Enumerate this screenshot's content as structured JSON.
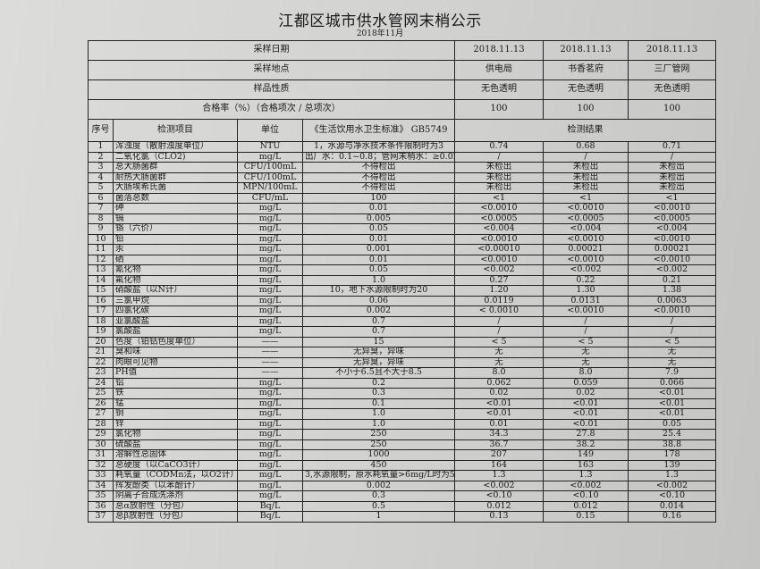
{
  "title": "江都区城市供水管网末梢公示",
  "subtitle": "2018年11月",
  "header_rows": [
    {
      "label": "采样日期",
      "values": [
        "2018.11.13",
        "2018.11.13",
        "2018.11.13"
      ]
    },
    {
      "label": "采样地点",
      "values": [
        "供电局",
        "书香茗府",
        "三厂管网"
      ]
    },
    {
      "label": "样品性质",
      "values": [
        "无色透明",
        "无色透明",
        "无色透明"
      ]
    },
    {
      "label": "合格率（%）（合格项次 / 总项次）",
      "values": [
        "100",
        "100",
        "100"
      ]
    }
  ],
  "columns": {
    "seq": "序号",
    "item": "检测项目",
    "unit": "单位",
    "standard": "《生活饮用水卫生标准》 GB5749",
    "results": "检测结果"
  },
  "rows": [
    [
      "1",
      "浑浊度（散射浊度单位）",
      "NTU",
      "1，水源与净水技术条件限制时为3",
      "0.74",
      "0.68",
      "0.71"
    ],
    [
      "2",
      "二氧化氯（CLO2)",
      "mg/L",
      "出厂水：0.1~0.8；管网末梢水：≥0.02",
      "/",
      "/",
      "/"
    ],
    [
      "3",
      "总大肠菌群",
      "CFU/100mL",
      "不得检出",
      "未检出",
      "未检出",
      "未检出"
    ],
    [
      "4",
      "耐热大肠菌群",
      "CFU/100mL",
      "不得检出",
      "未检出",
      "未检出",
      "未检出"
    ],
    [
      "5",
      "大肠埃希氏菌",
      "MPN/100mL",
      "不得检出",
      "未检出",
      "未检出",
      "未检出"
    ],
    [
      "6",
      "菌落总数",
      "CFU/mL",
      "100",
      "<1",
      "<1",
      "<1"
    ],
    [
      "7",
      "砷",
      "mg/L",
      "0.01",
      "<0.0010",
      "<0.0010",
      "<0.0010"
    ],
    [
      "8",
      "镉",
      "mg/L",
      "0.005",
      "<0.0005",
      "<0.0005",
      "<0.0005"
    ],
    [
      "9",
      "铬（六价）",
      "mg/L",
      "0.05",
      "<0.004",
      "<0.004",
      "<0.004"
    ],
    [
      "10",
      "铅",
      "mg/L",
      "0.01",
      "<0.0010",
      "<0.0010",
      "<0.0010"
    ],
    [
      "11",
      "汞",
      "mg/L",
      "0.001",
      "<0.00010",
      "0.00021",
      "0.00021"
    ],
    [
      "12",
      "硒",
      "mg/L",
      "0.01",
      "<0.0010",
      "<0.0010",
      "<0.0010"
    ],
    [
      "13",
      "氰化物",
      "mg/L",
      "0.05",
      "<0.002",
      "<0.002",
      "<0.002"
    ],
    [
      "14",
      "氟化物",
      "mg/L",
      "1.0",
      "0.27",
      "0.22",
      "0.21"
    ],
    [
      "15",
      "硝酸盐（以N计）",
      "mg/L",
      "10，地下水源限制时为20",
      "1.20",
      "1.30",
      "1.38"
    ],
    [
      "16",
      "三氯甲烷",
      "mg/L",
      "0.06",
      "0.0119",
      "0.0131",
      "0.0063"
    ],
    [
      "17",
      "四氯化碳",
      "mg/L",
      "0.002",
      "< 0.0010",
      "<0.0010",
      "<0.0010"
    ],
    [
      "18",
      "亚氯酸盐",
      "mg/L",
      "0.7",
      "/",
      "/",
      "/"
    ],
    [
      "19",
      "氯酸盐",
      "mg/L",
      "0.7",
      "/",
      "/",
      "/"
    ],
    [
      "20",
      "色度（铂钴色度单位）",
      "——",
      "15",
      "< 5",
      "< 5",
      "< 5"
    ],
    [
      "21",
      "臭和味",
      "——",
      "无异臭，异味",
      "无",
      "无",
      "无"
    ],
    [
      "22",
      "肉眼可见物",
      "——",
      "无异臭，异味",
      "无",
      "无",
      "无"
    ],
    [
      "23",
      "PH值",
      "——",
      "不小于6.5且不大于8.5",
      "8.0",
      "8.0",
      "7.9"
    ],
    [
      "24",
      "铝",
      "mg/L",
      "0.2",
      "0.062",
      "0.059",
      "0.066"
    ],
    [
      "25",
      "铁",
      "mg/L",
      "0.3",
      "0.02",
      "0.02",
      "<0.01"
    ],
    [
      "26",
      "锰",
      "mg/L",
      "0.1",
      "<0.01",
      "<0.01",
      "<0.01"
    ],
    [
      "27",
      "铜",
      "mg/L",
      "1.0",
      "<0.01",
      "<0.01",
      "<0.01"
    ],
    [
      "28",
      "锌",
      "mg/L",
      "1.0",
      "0.01",
      "<0.01",
      "0.05"
    ],
    [
      "29",
      "氯化物",
      "mg/L",
      "250",
      "34.3",
      "27.8",
      "25.4"
    ],
    [
      "30",
      "硫酸盐",
      "mg/L",
      "250",
      "36.7",
      "38.2",
      "38.8"
    ],
    [
      "31",
      "溶解性总固体",
      "mg/L",
      "1000",
      "207",
      "149",
      "178"
    ],
    [
      "32",
      "总硬度（以CaCO3计）",
      "mg/L",
      "450",
      "164",
      "163",
      "139"
    ],
    [
      "33",
      "耗氧量（CODMn法，以O2计）",
      "mg/L",
      "3,水源限制，原水耗氧量>6mg/L时为5",
      "1.3",
      "1.3",
      "1.3"
    ],
    [
      "34",
      "挥发酚类（以苯酚计）",
      "mg/L",
      "0.002",
      "<0.002",
      "<0.002",
      "<0.002"
    ],
    [
      "35",
      "阴离子合成洗涤剂",
      "mg/L",
      "0.3",
      "<0.10",
      "<0.10",
      "<0.10"
    ],
    [
      "36",
      "总α放射性（分包）",
      "Bq/L",
      "0.5",
      "0.012",
      "0.012",
      "0.014"
    ],
    [
      "37",
      "总β放射性（分包）",
      "Bq/L",
      "1",
      "0.13",
      "0.15",
      "0.16"
    ]
  ]
}
